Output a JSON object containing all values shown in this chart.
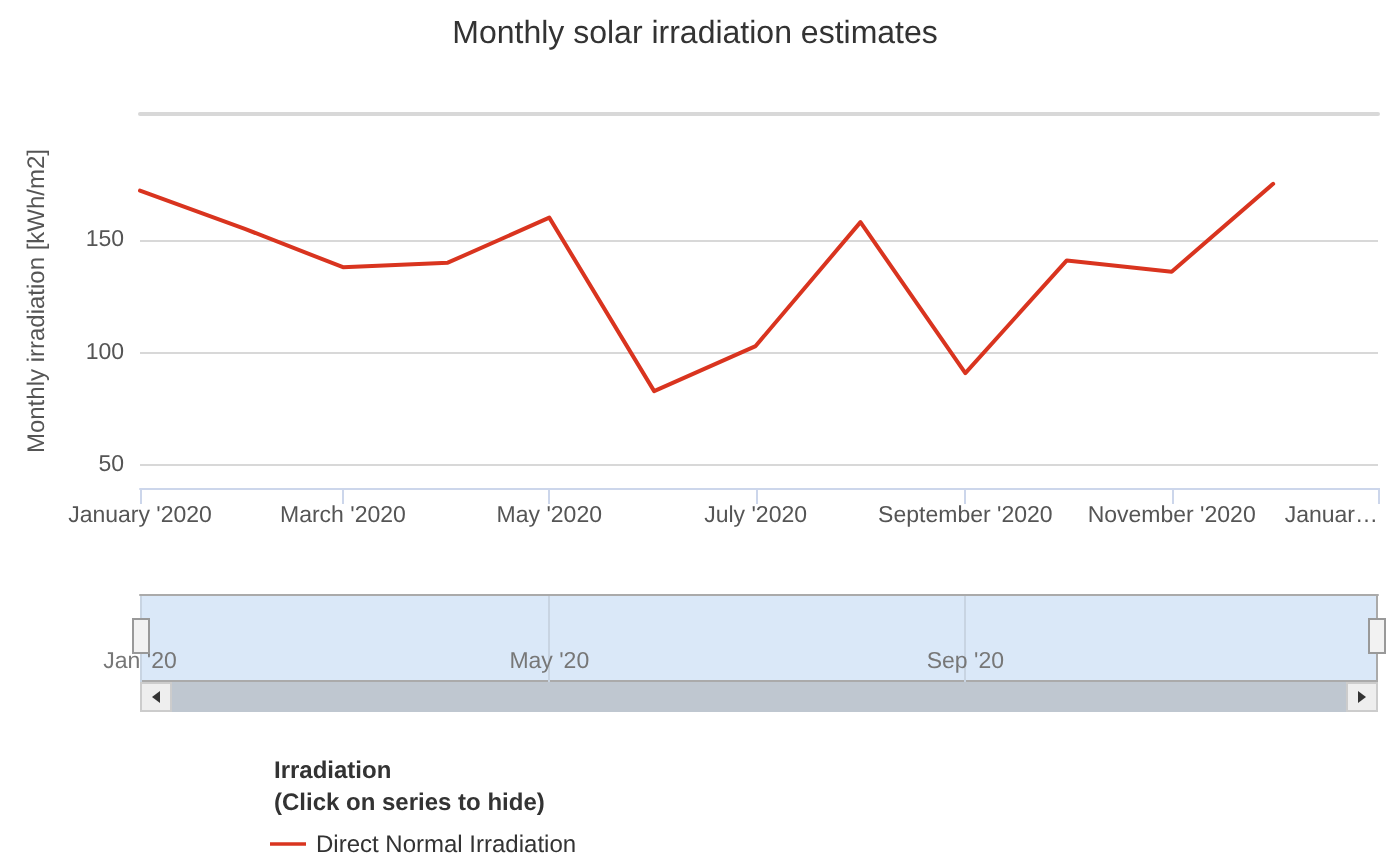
{
  "chart_data": {
    "type": "line",
    "title": "Monthly solar irradiation estimates",
    "ylabel": "Monthly irradiation [kWh/m2]",
    "legend_title": "Irradiation\n(Click on series to hide)",
    "x": [
      "2020-01",
      "2020-02",
      "2020-03",
      "2020-04",
      "2020-05",
      "2020-06",
      "2020-07",
      "2020-08",
      "2020-09",
      "2020-10",
      "2020-11",
      "2020-12"
    ],
    "series": [
      {
        "name": "Direct Normal Irradiation",
        "color": "#d9341f",
        "values": [
          172,
          155,
          138,
          140,
          160,
          83,
          103,
          158,
          91,
          141,
          136,
          175
        ]
      }
    ],
    "xlim": [
      "2020-01",
      "2021-01"
    ],
    "xticks": [
      {
        "value": "2020-01",
        "label": "January '2020"
      },
      {
        "value": "2020-03",
        "label": "March '2020"
      },
      {
        "value": "2020-05",
        "label": "May '2020"
      },
      {
        "value": "2020-07",
        "label": "July '2020"
      },
      {
        "value": "2020-09",
        "label": "September '2020"
      },
      {
        "value": "2020-11",
        "label": "November '2020"
      },
      {
        "value": "2021-01",
        "label": "Januar…"
      }
    ],
    "x2lim": [
      "2020-01",
      "2021-01"
    ],
    "x2ticks": [
      {
        "value": "2020-01",
        "label": "Jan '20"
      },
      {
        "value": "2020-05",
        "label": "May '20"
      },
      {
        "value": "2020-09",
        "label": "Sep '20"
      }
    ],
    "ylim": [
      40,
      206
    ],
    "yticks": [
      50,
      100,
      150
    ],
    "grid": "y",
    "legend": "bottom left",
    "marker": "none",
    "line_style": "solid"
  }
}
